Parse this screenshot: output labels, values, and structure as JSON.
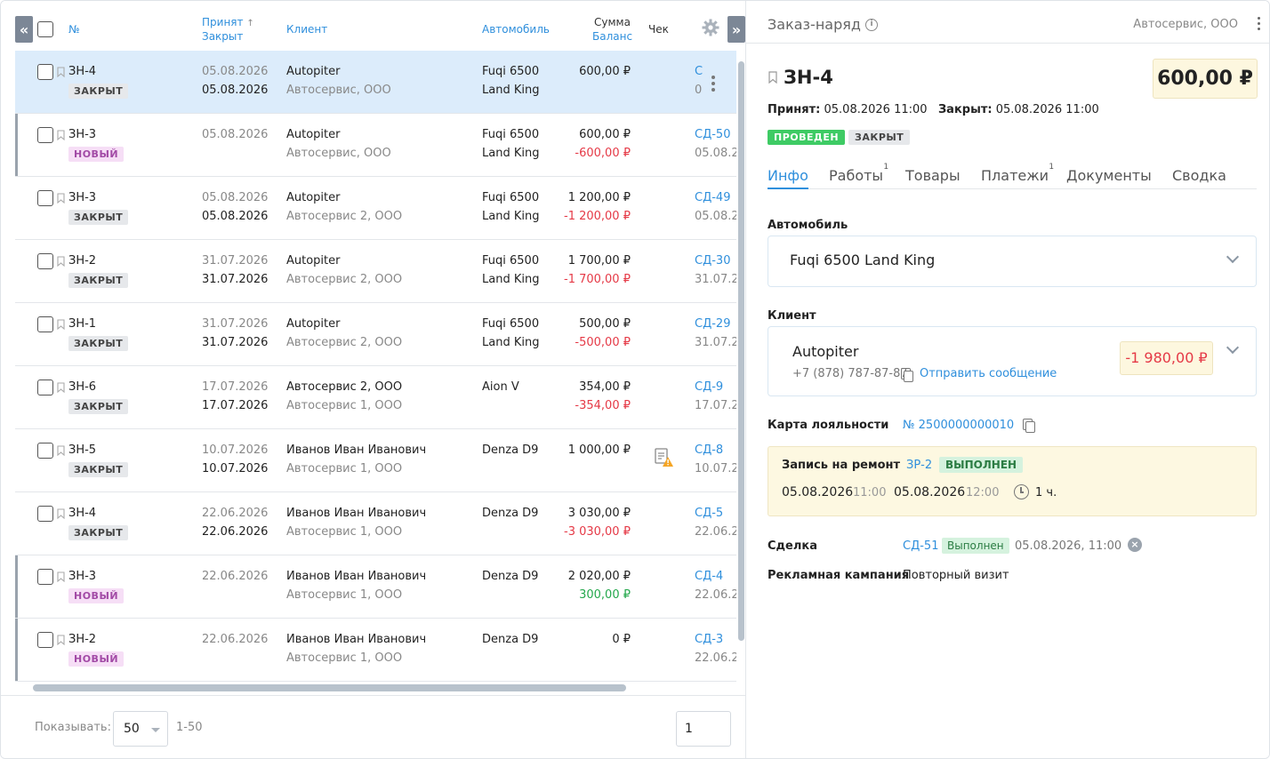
{
  "list": {
    "headers": {
      "number": "№",
      "accepted": "Принят",
      "sort_mark": "↑",
      "closed": "Закрыт",
      "client": "Клиент",
      "car": "Автомобиль",
      "sum": "Сумма",
      "balance": "Баланс",
      "check": "Чек"
    },
    "rows": [
      {
        "num": "ЗН-4",
        "status": "ЗАКРЫТ",
        "status_type": "closed",
        "accepted": "05.08.2026",
        "closed": "05.08.2026",
        "client": "Autopiter",
        "company": "Автосервис, ООО",
        "car1": "Fuqi 6500",
        "car2": "Land King",
        "sum": "600,00 ₽",
        "balance": "",
        "balance_type": "",
        "deal": "С",
        "deal_date": "0",
        "selected": true,
        "bar": false,
        "check_icon": false
      },
      {
        "num": "ЗН-3",
        "status": "НОВЫЙ",
        "status_type": "new",
        "accepted": "05.08.2026",
        "closed": "",
        "client": "Autopiter",
        "company": "Автосервис, ООО",
        "car1": "Fuqi 6500",
        "car2": "Land King",
        "sum": "600,00 ₽",
        "balance": "-600,00 ₽",
        "balance_type": "neg",
        "deal": "СД-50",
        "deal_date": "05.08.2",
        "selected": false,
        "bar": true,
        "check_icon": false
      },
      {
        "num": "ЗН-3",
        "status": "ЗАКРЫТ",
        "status_type": "closed",
        "accepted": "05.08.2026",
        "closed": "05.08.2026",
        "client": "Autopiter",
        "company": "Автосервис 2, ООО",
        "car1": "Fuqi 6500",
        "car2": "Land King",
        "sum": "1 200,00 ₽",
        "balance": "-1 200,00 ₽",
        "balance_type": "neg",
        "deal": "СД-49",
        "deal_date": "05.08.2",
        "selected": false,
        "bar": false,
        "check_icon": false
      },
      {
        "num": "ЗН-2",
        "status": "ЗАКРЫТ",
        "status_type": "closed",
        "accepted": "31.07.2026",
        "closed": "31.07.2026",
        "client": "Autopiter",
        "company": "Автосервис 2, ООО",
        "car1": "Fuqi 6500",
        "car2": "Land King",
        "sum": "1 700,00 ₽",
        "balance": "-1 700,00 ₽",
        "balance_type": "neg",
        "deal": "СД-30",
        "deal_date": "31.07.20",
        "selected": false,
        "bar": false,
        "check_icon": false
      },
      {
        "num": "ЗН-1",
        "status": "ЗАКРЫТ",
        "status_type": "closed",
        "accepted": "31.07.2026",
        "closed": "31.07.2026",
        "client": "Autopiter",
        "company": "Автосервис 2, ООО",
        "car1": "Fuqi 6500",
        "car2": "Land King",
        "sum": "500,00 ₽",
        "balance": "-500,00 ₽",
        "balance_type": "neg",
        "deal": "СД-29",
        "deal_date": "31.07.20",
        "selected": false,
        "bar": false,
        "check_icon": false
      },
      {
        "num": "ЗН-6",
        "status": "ЗАКРЫТ",
        "status_type": "closed",
        "accepted": "17.07.2026",
        "closed": "17.07.2026",
        "client": "Автосервис 2, ООО",
        "company": "Автосервис 1, ООО",
        "car1": "Aion V",
        "car2": "",
        "sum": "354,00 ₽",
        "balance": "-354,00 ₽",
        "balance_type": "neg",
        "deal": "СД-9",
        "deal_date": "17.07.20",
        "selected": false,
        "bar": false,
        "check_icon": false
      },
      {
        "num": "ЗН-5",
        "status": "ЗАКРЫТ",
        "status_type": "closed",
        "accepted": "10.07.2026",
        "closed": "10.07.2026",
        "client": "Иванов Иван Иванович",
        "company": "Автосервис 1, ООО",
        "car1": "Denza D9",
        "car2": "",
        "sum": "1 000,00 ₽",
        "balance": "",
        "balance_type": "",
        "deal": "СД-8",
        "deal_date": "10.07.20",
        "selected": false,
        "bar": false,
        "check_icon": true
      },
      {
        "num": "ЗН-4",
        "status": "ЗАКРЫТ",
        "status_type": "closed",
        "accepted": "22.06.2026",
        "closed": "22.06.2026",
        "client": "Иванов Иван Иванович",
        "company": "Автосервис 1, ООО",
        "car1": "Denza D9",
        "car2": "",
        "sum": "3 030,00 ₽",
        "balance": "-3 030,00 ₽",
        "balance_type": "neg",
        "deal": "СД-5",
        "deal_date": "22.06.2",
        "selected": false,
        "bar": false,
        "check_icon": false
      },
      {
        "num": "ЗН-3",
        "status": "НОВЫЙ",
        "status_type": "new",
        "accepted": "22.06.2026",
        "closed": "",
        "client": "Иванов Иван Иванович",
        "company": "Автосервис 1, ООО",
        "car1": "Denza D9",
        "car2": "",
        "sum": "2 020,00 ₽",
        "balance": "300,00 ₽",
        "balance_type": "pos",
        "deal": "СД-4",
        "deal_date": "22.06.2",
        "selected": false,
        "bar": true,
        "check_icon": false
      },
      {
        "num": "ЗН-2",
        "status": "НОВЫЙ",
        "status_type": "new",
        "accepted": "22.06.2026",
        "closed": "",
        "client": "Иванов Иван Иванович",
        "company": "Автосервис 1, ООО",
        "car1": "Denza D9",
        "car2": "",
        "sum": "0 ₽",
        "balance": "",
        "balance_type": "",
        "deal": "СД-3",
        "deal_date": "22.06.2",
        "selected": false,
        "bar": true,
        "check_icon": false
      }
    ],
    "footer": {
      "show_label": "Показывать:",
      "per_page": "50",
      "range": "1-50",
      "page": "1"
    }
  },
  "panel": {
    "title": "Заказ-наряд",
    "company": "Автосервис, ООО",
    "order": "ЗН-4",
    "total": "600,00 ₽",
    "accepted_label": "Принят:",
    "accepted_value": "05.08.2026 11:00",
    "closed_label": "Закрыт:",
    "closed_value": "05.08.2026 11:00",
    "badge_done": "ПРОВЕДЕН",
    "badge_closed": "ЗАКРЫТ",
    "tabs": [
      {
        "label": "Инфо",
        "count": ""
      },
      {
        "label": "Работы",
        "count": "1"
      },
      {
        "label": "Товары",
        "count": ""
      },
      {
        "label": "Платежи",
        "count": "1"
      },
      {
        "label": "Документы",
        "count": ""
      },
      {
        "label": "Сводка",
        "count": ""
      }
    ],
    "car_label": "Автомобиль",
    "car_value": "Fuqi 6500 Land King",
    "client_label": "Клиент",
    "client_name": "Autopiter",
    "client_phone": "+7 (878) 787-87-87",
    "client_message": "Отправить сообщение",
    "client_balance": "-1 980,00 ₽",
    "loyalty_label": "Карта лояльности",
    "loyalty_value": "№ 2500000000010",
    "repair_label": "Запись на ремонт",
    "repair_link": "ЗР-2",
    "repair_status": "ВЫПОЛНЕН",
    "repair_date1": "05.08.2026",
    "repair_time1": "11:00",
    "repair_date2": "05.08.2026",
    "repair_time2": "12:00",
    "repair_duration": "1 ч.",
    "deal_label": "Сделка",
    "deal_link": "СД-51",
    "deal_status": "Выполнен",
    "deal_date": "05.08.2026, 11:00",
    "ad_label": "Рекламная кампания",
    "ad_value": "Повторный визит"
  },
  "colors": {
    "accent": "#2f8fdc",
    "negative": "#e53946",
    "positive": "#25a84d",
    "success": "#3ecb64"
  }
}
